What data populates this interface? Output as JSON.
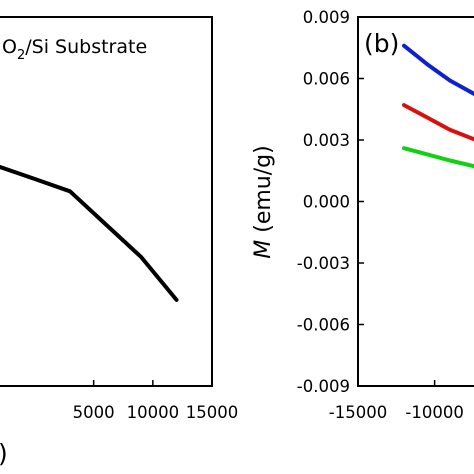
{
  "chart_data": [
    {
      "type": "line",
      "panel": "a",
      "title_prefix": "O",
      "title_subscript": "2",
      "title_suffix": "/Si Substrate",
      "xticks": [
        "5000",
        "10000",
        "15000"
      ],
      "x_tick_values": [
        5000,
        10000,
        15000
      ],
      "xlim": [
        -3000,
        15000
      ],
      "ylim": [
        -0.009,
        0.009
      ],
      "partial_label": ")",
      "grid": false,
      "series": [
        {
          "color": "#000000",
          "x": [
            -3000,
            0,
            3000,
            6000,
            9000,
            12000
          ],
          "y": [
            0.0017,
            0.0011,
            0.0005,
            -0.0011,
            -0.0027,
            -0.0048
          ]
        }
      ]
    },
    {
      "type": "line",
      "panel": "b",
      "panel_label": "(b)",
      "ylabel_italic": "M",
      "ylabel_rest": " (emu/g)",
      "yticks": [
        "0.009",
        "0.006",
        "0.003",
        "0.000",
        "-0.003",
        "-0.006",
        "-0.009"
      ],
      "y_tick_values": [
        0.009,
        0.006,
        0.003,
        0.0,
        -0.003,
        -0.006,
        -0.009
      ],
      "xticks": [
        "-15000",
        "-10000"
      ],
      "x_tick_values": [
        -15000,
        -10000
      ],
      "xlim": [
        -15000,
        -7300
      ],
      "ylim": [
        -0.009,
        0.009
      ],
      "grid": false,
      "series": [
        {
          "color": "#1020d0",
          "x": [
            -12000,
            -10500,
            -9000,
            -7300
          ],
          "y": [
            0.0076,
            0.0067,
            0.0059,
            0.0052
          ]
        },
        {
          "color": "#d81010",
          "x": [
            -12000,
            -10500,
            -9000,
            -7300
          ],
          "y": [
            0.0047,
            0.0041,
            0.0035,
            0.003
          ]
        },
        {
          "color": "#10d010",
          "x": [
            -12000,
            -10500,
            -9000,
            -7300
          ],
          "y": [
            0.0026,
            0.0023,
            0.002,
            0.0017
          ]
        }
      ]
    }
  ]
}
